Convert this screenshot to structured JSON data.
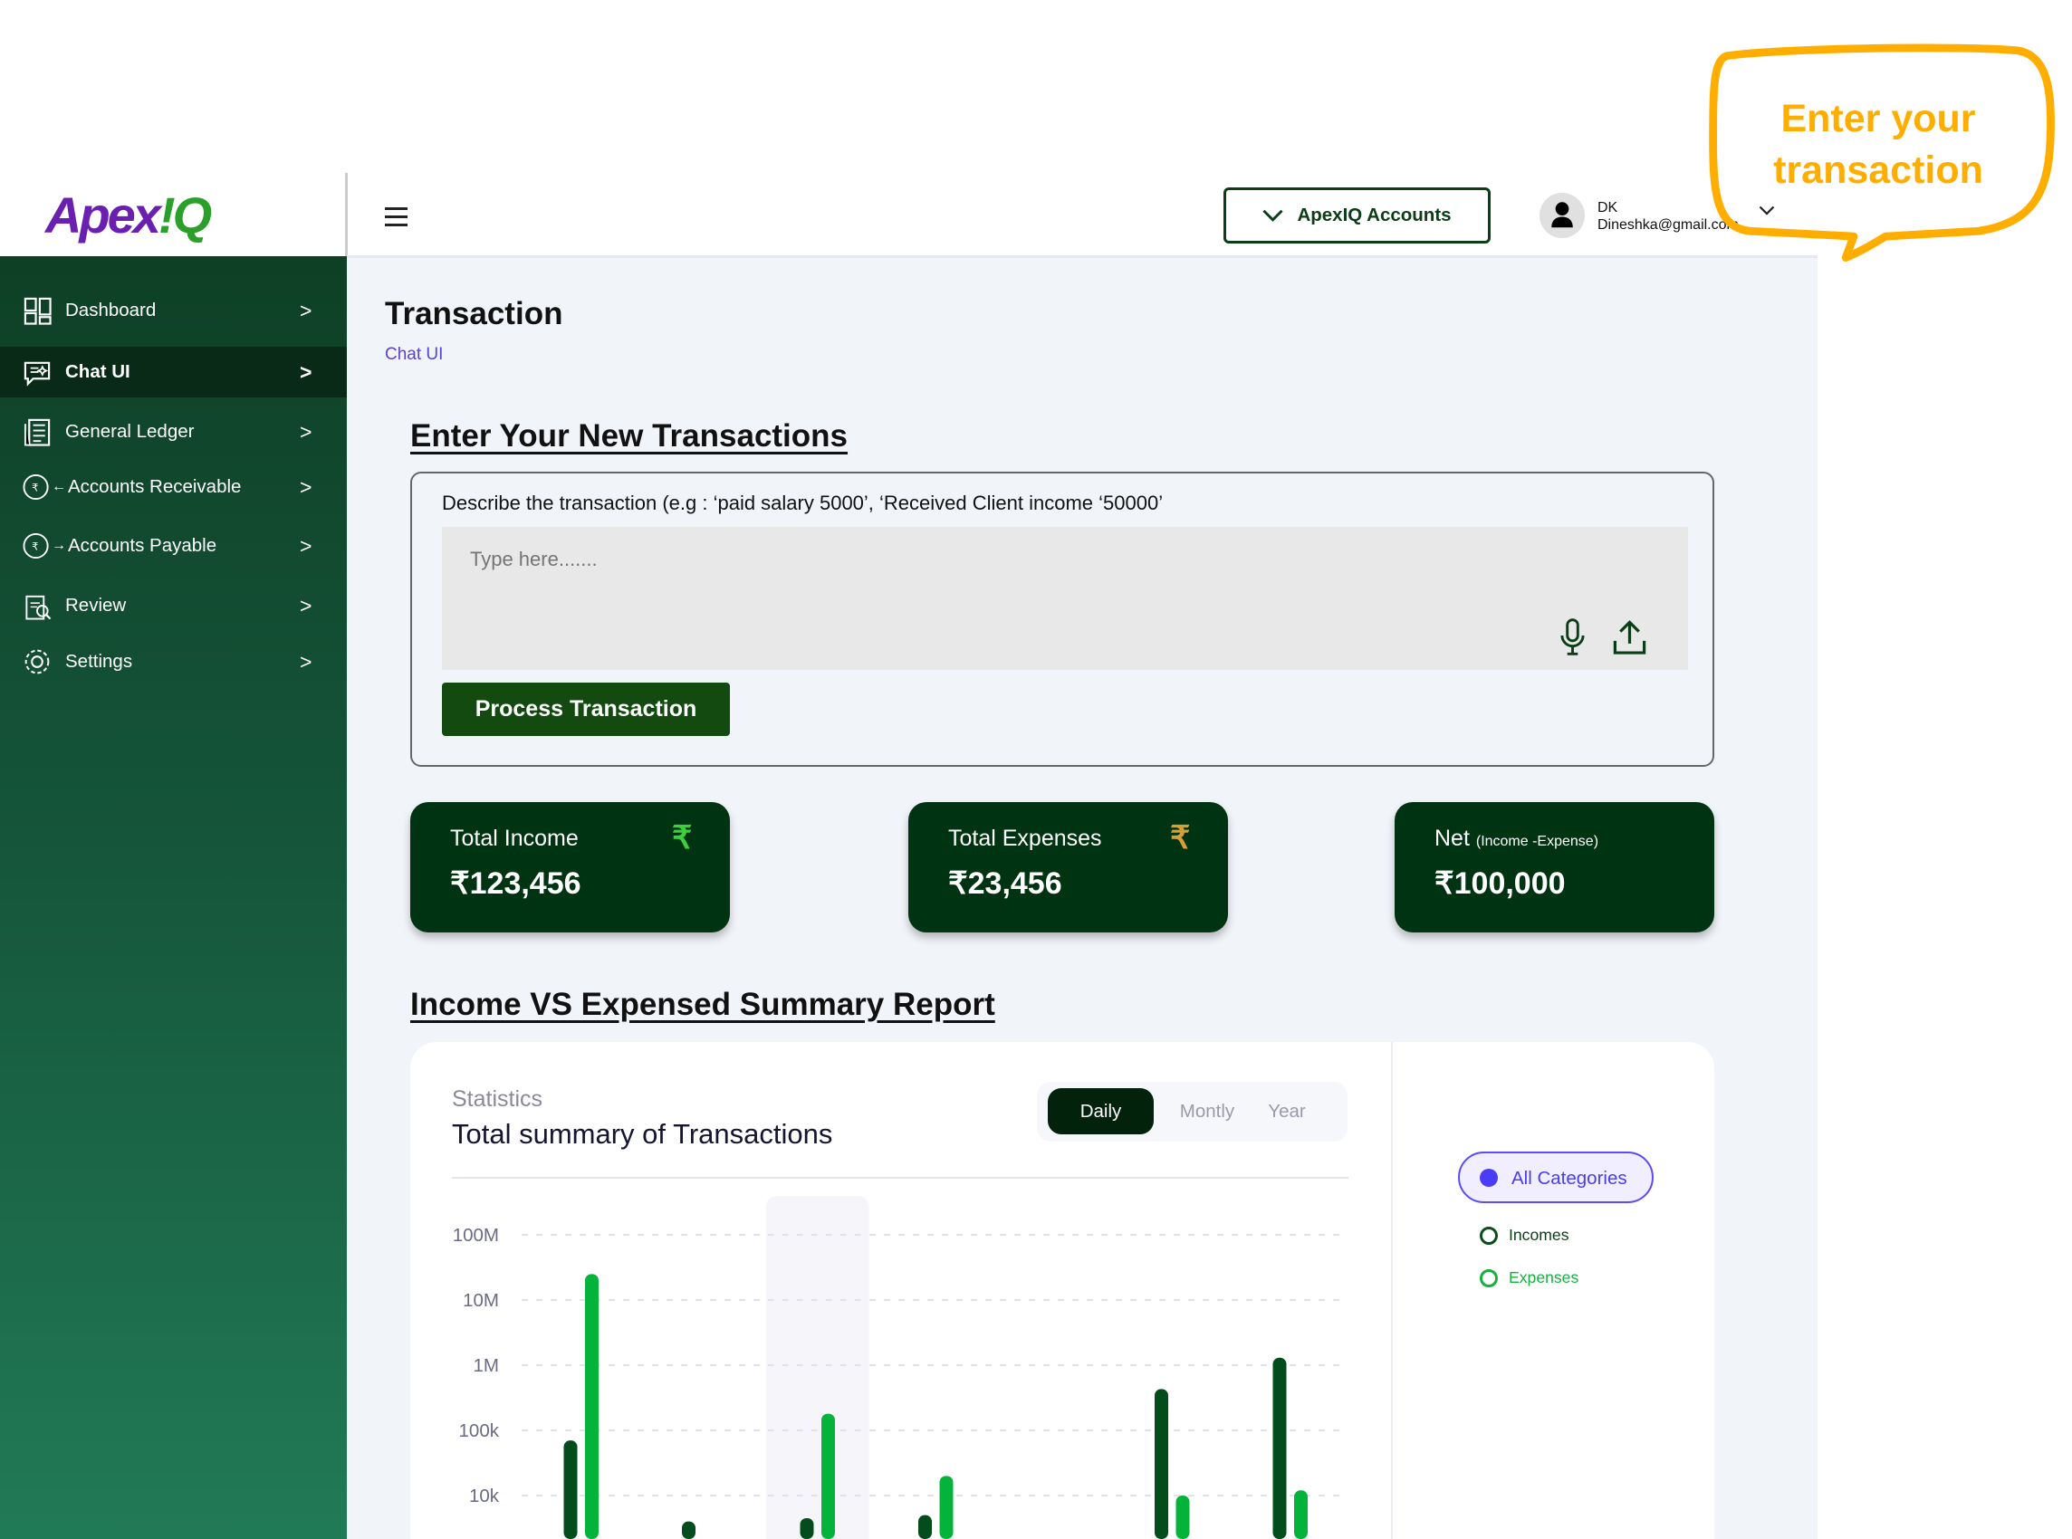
{
  "brand": {
    "logo_text_1": "Apex",
    "logo_text_2": "!Q"
  },
  "header": {
    "account_button": "ApexIQ Accounts",
    "user_initials": "DK",
    "user_email": "Dineshka@gmail.com"
  },
  "callout": {
    "line1": "Enter your",
    "line2": "transaction",
    "color": "#ffae00"
  },
  "sidebar": {
    "items": [
      {
        "label": "Dashboard",
        "icon": "dashboard-grid-icon"
      },
      {
        "label": "Chat UI",
        "icon": "chat-sparkle-icon",
        "active": true
      },
      {
        "label": "General Ledger",
        "icon": "ledger-icon"
      },
      {
        "label": "Accounts Receivable",
        "icon": "rupee-receive-icon"
      },
      {
        "label": "Accounts Payable",
        "icon": "rupee-pay-icon"
      },
      {
        "label": "Review",
        "icon": "review-clipboard-icon"
      },
      {
        "label": "Settings",
        "icon": "gear-icon"
      }
    ]
  },
  "page": {
    "title": "Transaction",
    "breadcrumb": "Chat UI"
  },
  "entry": {
    "heading": "Enter Your New Transactions",
    "label": "Describe the transaction (e.g : ‘paid salary 5000’, ‘Received Client income ‘50000’",
    "placeholder": "Type here.......",
    "value": "",
    "process_button": "Process Transaction"
  },
  "summary": [
    {
      "title": "Total Income",
      "subtitle": "",
      "value": "₹123,456",
      "icon_color": "#3ecf3e"
    },
    {
      "title": "Total Expenses",
      "subtitle": "",
      "value": "₹23,456",
      "icon_color": "#d4a03a"
    },
    {
      "title": "Net",
      "subtitle": "(Income -Expense)",
      "value": "₹100,000"
    }
  ],
  "report": {
    "heading": "Income VS  Expensed Summary Report",
    "kicker": "Statistics",
    "title": "Total summary of Transactions",
    "periods": [
      "Daily",
      "Montly",
      "Year"
    ],
    "active_period": "Daily",
    "legend": {
      "all": "All Categories",
      "incomes": "Incomes",
      "expenses": "Expenses"
    }
  },
  "chart_data": {
    "type": "bar",
    "scale": "log",
    "ytick_labels": [
      "100M",
      "10M",
      "1M",
      "100k",
      "10k"
    ],
    "yticks": [
      100000000,
      10000000,
      1000000,
      100000,
      10000
    ],
    "grid": true,
    "highlighted_group": 3,
    "series": [
      {
        "name": "Incomes",
        "color": "#034d1d",
        "values": [
          70000,
          4000,
          4500,
          5000,
          null,
          430000,
          1300000
        ]
      },
      {
        "name": "Expenses",
        "color": "#04b43a",
        "values": [
          25000000,
          null,
          180000,
          20000,
          null,
          10000,
          12000
        ]
      }
    ]
  }
}
